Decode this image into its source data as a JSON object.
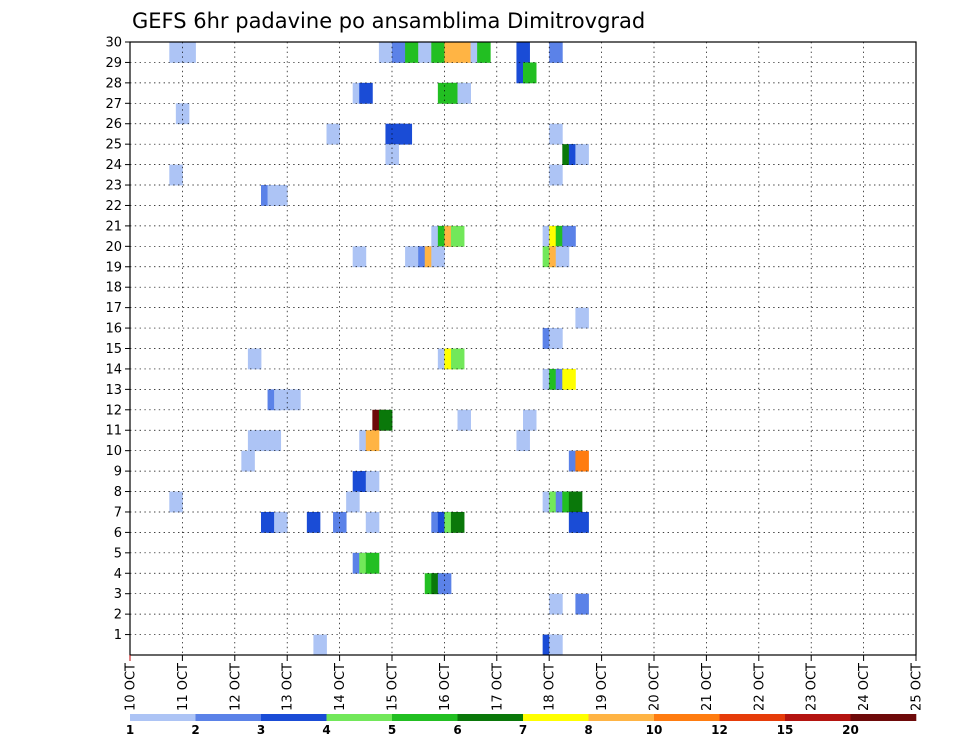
{
  "chart_data": {
    "type": "heatmap",
    "title": "GEFS 6hr padavine po ansamblima Dimitrovgrad",
    "xlabel": "",
    "ylabel": "",
    "x_tick_labels": [
      "10 OCT",
      "11 OCT",
      "12 OCT",
      "13 OCT",
      "14 OCT",
      "15 OCT",
      "16 OCT",
      "17 OCT",
      "18 OCT",
      "19 OCT",
      "20 OCT",
      "21 OCT",
      "22 OCT",
      "23 OCT",
      "24 OCT",
      "25 OCT"
    ],
    "x_range_steps": [
      0,
      60
    ],
    "steps_per_day": 4,
    "y_tick_labels": [
      "1",
      "2",
      "3",
      "4",
      "5",
      "6",
      "7",
      "8",
      "9",
      "10",
      "11",
      "12",
      "13",
      "14",
      "15",
      "16",
      "17",
      "18",
      "19",
      "20",
      "21",
      "22",
      "23",
      "24",
      "25",
      "26",
      "27",
      "28",
      "29",
      "30"
    ],
    "y_range": [
      0,
      30
    ],
    "grid": true,
    "colorbar": {
      "labels": [
        "1",
        "2",
        "3",
        "4",
        "5",
        "6",
        "7",
        "8",
        "10",
        "12",
        "15",
        "20"
      ],
      "colors": [
        "#adc4f5",
        "#5b82e8",
        "#1a4cd6",
        "#72e85a",
        "#22bf22",
        "#0a780a",
        "#ffff00",
        "#ffb444",
        "#ff7c10",
        "#e63c0a",
        "#b41410",
        "#6e0a0a"
      ]
    },
    "cells": [
      [
        3,
        30,
        0
      ],
      [
        4,
        30,
        0
      ],
      [
        19,
        30,
        0
      ],
      [
        20,
        30,
        1
      ],
      [
        21,
        30,
        4
      ],
      [
        22,
        30,
        0
      ],
      [
        23,
        30,
        4
      ],
      [
        24,
        30,
        7
      ],
      [
        25,
        30,
        7
      ],
      [
        26,
        30,
        0
      ],
      [
        26.5,
        30,
        4
      ],
      [
        29.5,
        30,
        2
      ],
      [
        32,
        30,
        1
      ],
      [
        29.5,
        29,
        2
      ],
      [
        30,
        29,
        4
      ],
      [
        17,
        28,
        0
      ],
      [
        17.5,
        28,
        2
      ],
      [
        23.5,
        28,
        4
      ],
      [
        24,
        28,
        4
      ],
      [
        24.5,
        28,
        4
      ],
      [
        25,
        28,
        0
      ],
      [
        3.5,
        27,
        0
      ],
      [
        15,
        26,
        0
      ],
      [
        19.5,
        26,
        2
      ],
      [
        20,
        26,
        2
      ],
      [
        20.5,
        26,
        2
      ],
      [
        32,
        26,
        0
      ],
      [
        19.5,
        25,
        0
      ],
      [
        33,
        25,
        5
      ],
      [
        33.5,
        25,
        2
      ],
      [
        34,
        25,
        0
      ],
      [
        3,
        24,
        0
      ],
      [
        32,
        24,
        0
      ],
      [
        10,
        23,
        1
      ],
      [
        10.5,
        23,
        0
      ],
      [
        11,
        23,
        0
      ],
      [
        23,
        21,
        0
      ],
      [
        23.5,
        21,
        4
      ],
      [
        24,
        21,
        7
      ],
      [
        24.5,
        21,
        3
      ],
      [
        31.5,
        21,
        0
      ],
      [
        32,
        21,
        6
      ],
      [
        32.5,
        21,
        4
      ],
      [
        33,
        21,
        1
      ],
      [
        17,
        20,
        0
      ],
      [
        21,
        20,
        0
      ],
      [
        21.5,
        20,
        0
      ],
      [
        22,
        20,
        1
      ],
      [
        22.5,
        20,
        7
      ],
      [
        23,
        20,
        0
      ],
      [
        31.5,
        20,
        3
      ],
      [
        32,
        20,
        7
      ],
      [
        32.5,
        20,
        0
      ],
      [
        34,
        17,
        0
      ],
      [
        31.5,
        16,
        1
      ],
      [
        32,
        16,
        0
      ],
      [
        9,
        15,
        0
      ],
      [
        23.5,
        15,
        0
      ],
      [
        24,
        15,
        6
      ],
      [
        24.5,
        15,
        3
      ],
      [
        31.5,
        14,
        0
      ],
      [
        32,
        14,
        4
      ],
      [
        32.5,
        14,
        1
      ],
      [
        33,
        14,
        6
      ],
      [
        10.5,
        13,
        1
      ],
      [
        11,
        13,
        0
      ],
      [
        12,
        13,
        0
      ],
      [
        18.5,
        12,
        11
      ],
      [
        19,
        12,
        5
      ],
      [
        25,
        12,
        0
      ],
      [
        30,
        12,
        0
      ],
      [
        9,
        11,
        0
      ],
      [
        9.5,
        11,
        0
      ],
      [
        10.5,
        11,
        0
      ],
      [
        17.5,
        11,
        0
      ],
      [
        18,
        11,
        7
      ],
      [
        29.5,
        11,
        0
      ],
      [
        8.5,
        10,
        0
      ],
      [
        33.5,
        10,
        1
      ],
      [
        34,
        10,
        8
      ],
      [
        17,
        9,
        2
      ],
      [
        17.5,
        9,
        2
      ],
      [
        18,
        9,
        0
      ],
      [
        3,
        8,
        0
      ],
      [
        16.5,
        8,
        0
      ],
      [
        31.5,
        8,
        0
      ],
      [
        32,
        8,
        3
      ],
      [
        32.5,
        8,
        1
      ],
      [
        33,
        8,
        4
      ],
      [
        33.5,
        8,
        5
      ],
      [
        10,
        7,
        2
      ],
      [
        10.5,
        7,
        2
      ],
      [
        11,
        7,
        0
      ],
      [
        13.5,
        7,
        2
      ],
      [
        15.5,
        7,
        1
      ],
      [
        18,
        7,
        0
      ],
      [
        23,
        7,
        1
      ],
      [
        23.5,
        7,
        2
      ],
      [
        24,
        7,
        3
      ],
      [
        24.5,
        7,
        5
      ],
      [
        33.5,
        7,
        2
      ],
      [
        34,
        7,
        2
      ],
      [
        17,
        5,
        1
      ],
      [
        17.5,
        5,
        3
      ],
      [
        18,
        5,
        4
      ],
      [
        22.5,
        4,
        4
      ],
      [
        23,
        4,
        5
      ],
      [
        23.5,
        4,
        1
      ],
      [
        32,
        3,
        0
      ],
      [
        34,
        3,
        1
      ],
      [
        14,
        1,
        0
      ],
      [
        31.5,
        1,
        2
      ],
      [
        32,
        1,
        0
      ]
    ]
  }
}
